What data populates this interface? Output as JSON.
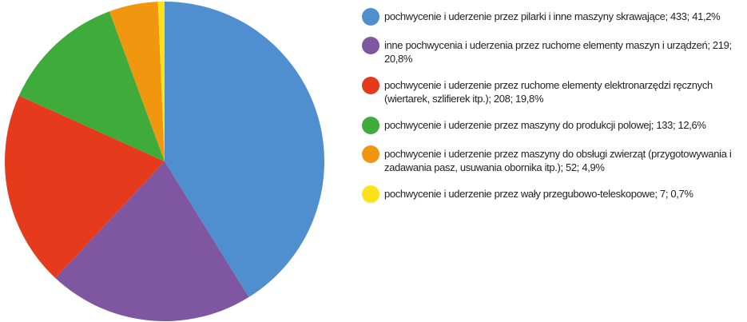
{
  "chart_data": {
    "type": "pie",
    "categories": [
      "pochwycenie i uderzenie przez pilarki i inne maszyny skrawające;",
      "inne pochwycenia i uderzenia przez ruchome elementy maszyn i urządzeń;",
      "pochwycenie i uderzenie przez ruchome elementy elektronarzędzi ręcznych (wiertarek, szlifierek itp.);",
      "pochwycenie i uderzenie przez maszyny do produkcji polowej;",
      "pochwycenie i uderzenie przez maszyny do obsługi zwierząt (przygotowywania i zadawania pasz, usuwania obornika itp.);",
      "pochwycenie i uderzenie przez wały przegubowo-teleskopowe;"
    ],
    "values": [
      433,
      219,
      208,
      133,
      52,
      7
    ],
    "value_labels": [
      "433; 41,2%",
      "219; 20,8%",
      "208; 19,8%",
      "133; 12,6%",
      "52; 4,9%",
      "7; 0,7%"
    ],
    "colors": [
      "#4f8fd0",
      "#7f57a1",
      "#e63a1c",
      "#3fab3a",
      "#f0960f",
      "#fde21a"
    ],
    "legend": "right"
  }
}
